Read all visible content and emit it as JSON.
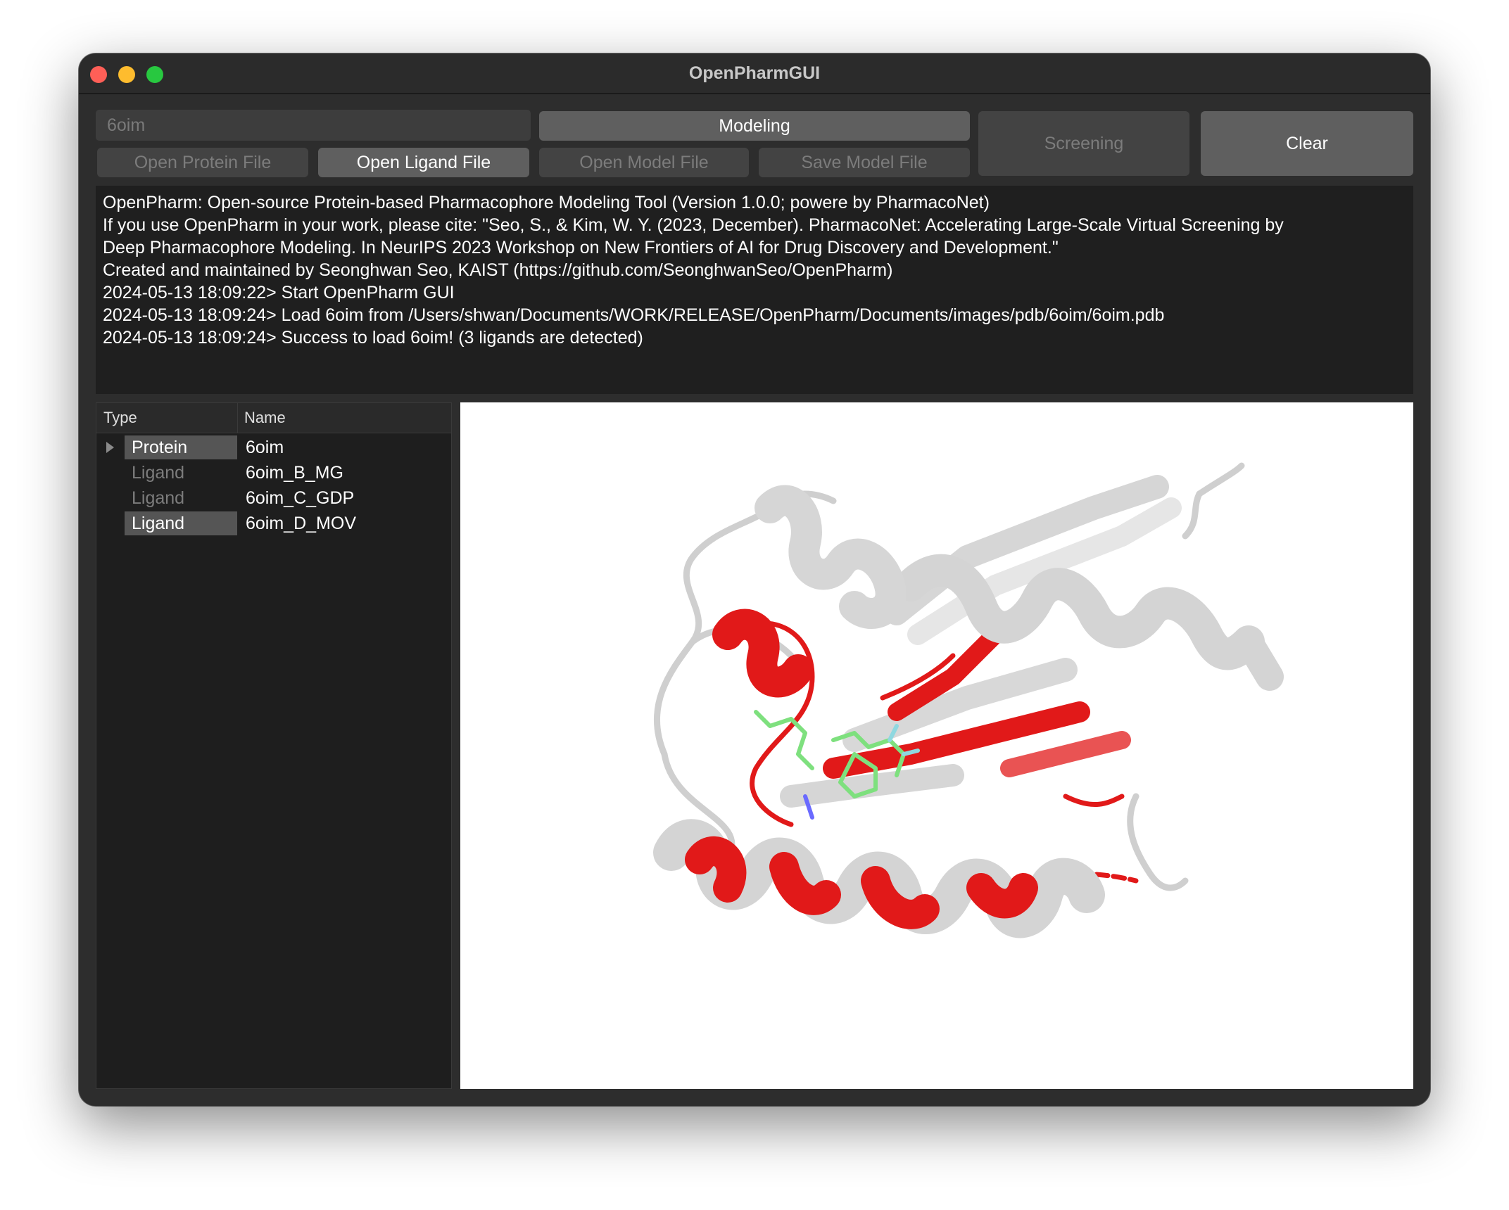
{
  "window": {
    "title": "OpenPharmGUI"
  },
  "toolbar": {
    "pdb_input_value": "6oim",
    "modeling_label": "Modeling",
    "screening_label": "Screening",
    "clear_label": "Clear",
    "open_protein_label": "Open Protein File",
    "open_ligand_label": "Open Ligand File",
    "open_model_label": "Open Model File",
    "save_model_label": "Save Model File"
  },
  "log": {
    "lines": [
      "OpenPharm: Open-source Protein-based Pharmacophore Modeling Tool (Version 1.0.0; powere by PharmacoNet)",
      "If you use OpenPharm in your work, please cite: \"Seo, S., & Kim, W. Y. (2023, December). PharmacoNet: Accelerating Large-Scale Virtual Screening by",
      "Deep Pharmacophore Modeling. In NeurIPS 2023 Workshop on New Frontiers of AI for Drug Discovery and Development.\"",
      "Created and maintained by Seonghwan Seo, KAIST (https://github.com/SeonghwanSeo/OpenPharm)",
      "",
      "2024-05-13 18:09:22> Start OpenPharm GUI",
      "2024-05-13 18:09:24> Load 6oim from /Users/shwan/Documents/WORK/RELEASE/OpenPharm/Documents/images/pdb/6oim/6oim.pdb",
      "2024-05-13 18:09:24> Success to load 6oim! (3 ligands are detected)"
    ]
  },
  "tree": {
    "headers": {
      "type": "Type",
      "name": "Name"
    },
    "rows": [
      {
        "type": "Protein",
        "name": "6oim"
      },
      {
        "type": "Ligand",
        "name": "6oim_B_MG"
      },
      {
        "type": "Ligand",
        "name": "6oim_C_GDP"
      },
      {
        "type": "Ligand",
        "name": "6oim_D_MOV"
      }
    ]
  },
  "colors": {
    "window_bg": "#2d2d2d",
    "log_bg": "#1f1f1f",
    "button_active": "#5f5f5f",
    "button_disabled": "#434343",
    "ribbon_gray": "#d4d4d4",
    "ribbon_red": "#e11919",
    "ligand_green": "#7ee07e"
  }
}
